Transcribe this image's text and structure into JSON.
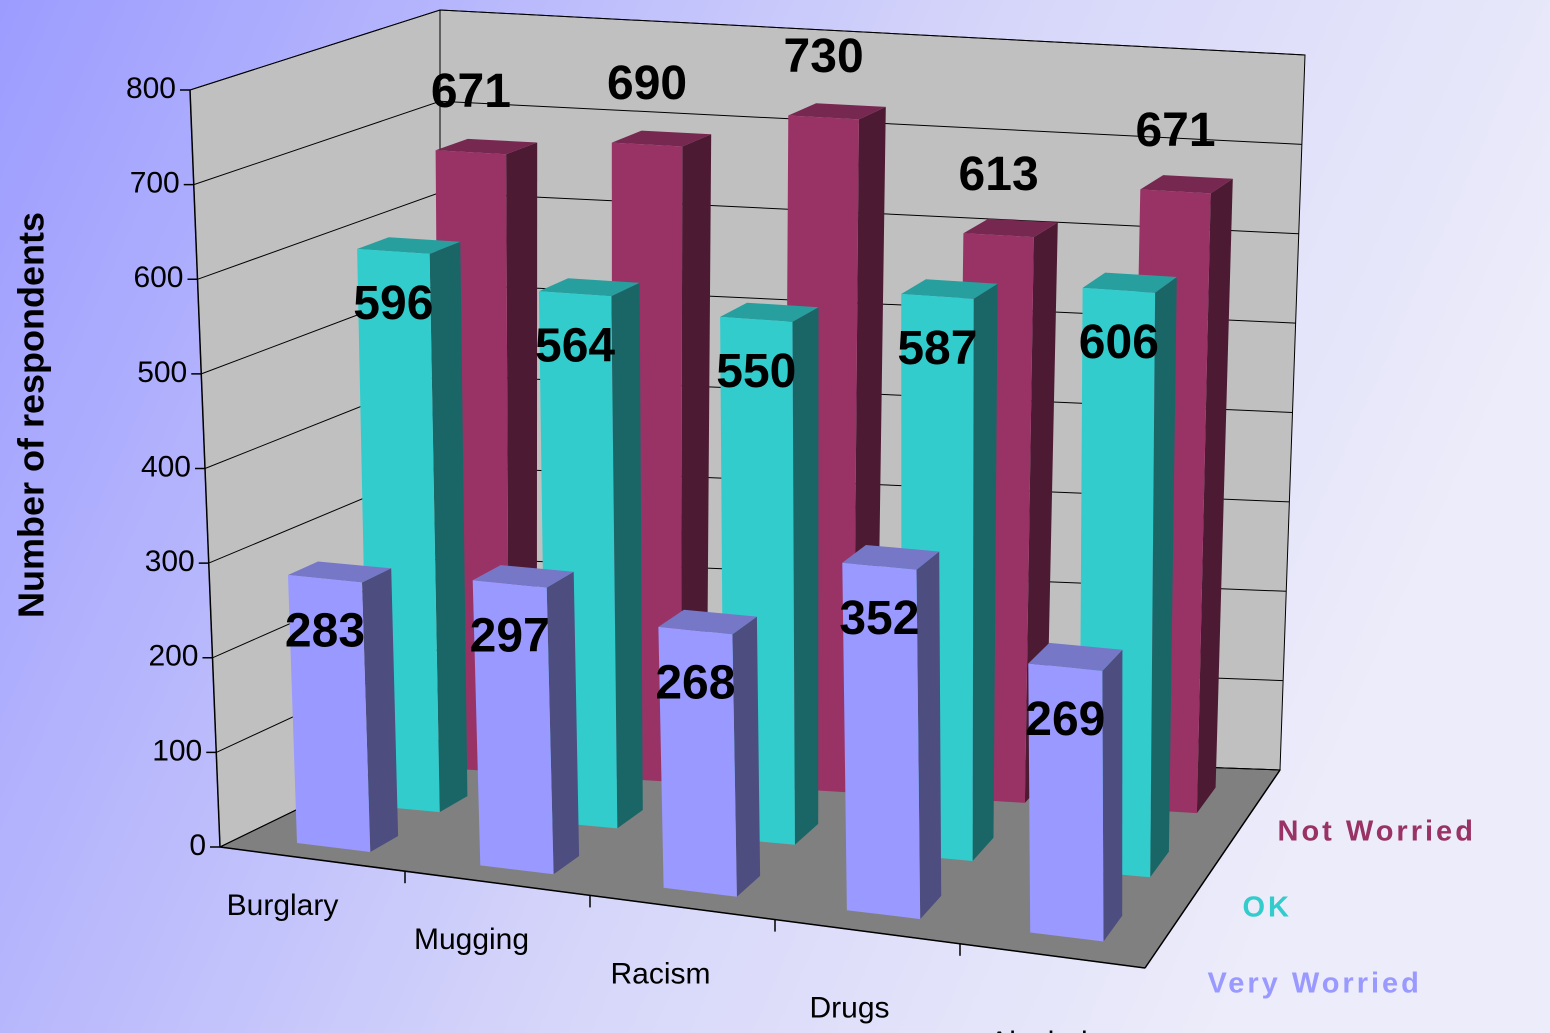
{
  "chart_data": {
    "type": "bar3d",
    "y_label": "Number of respondents",
    "categories": [
      "Burglary",
      "Mugging",
      "Racism",
      "Drugs",
      "Alcohol"
    ],
    "series": [
      {
        "name": "Very Worried",
        "color": "#9999ff",
        "values": [
          283,
          297,
          268,
          352,
          269
        ]
      },
      {
        "name": "OK",
        "color": "#33cccc",
        "values": [
          596,
          564,
          550,
          587,
          606
        ]
      },
      {
        "name": "Not Worried",
        "color": "#993366",
        "values": [
          671,
          690,
          730,
          613,
          671
        ]
      }
    ],
    "ylim": [
      0,
      800
    ],
    "yticks": [
      0,
      100,
      200,
      300,
      400,
      500,
      600,
      700,
      800
    ],
    "grid": true
  }
}
